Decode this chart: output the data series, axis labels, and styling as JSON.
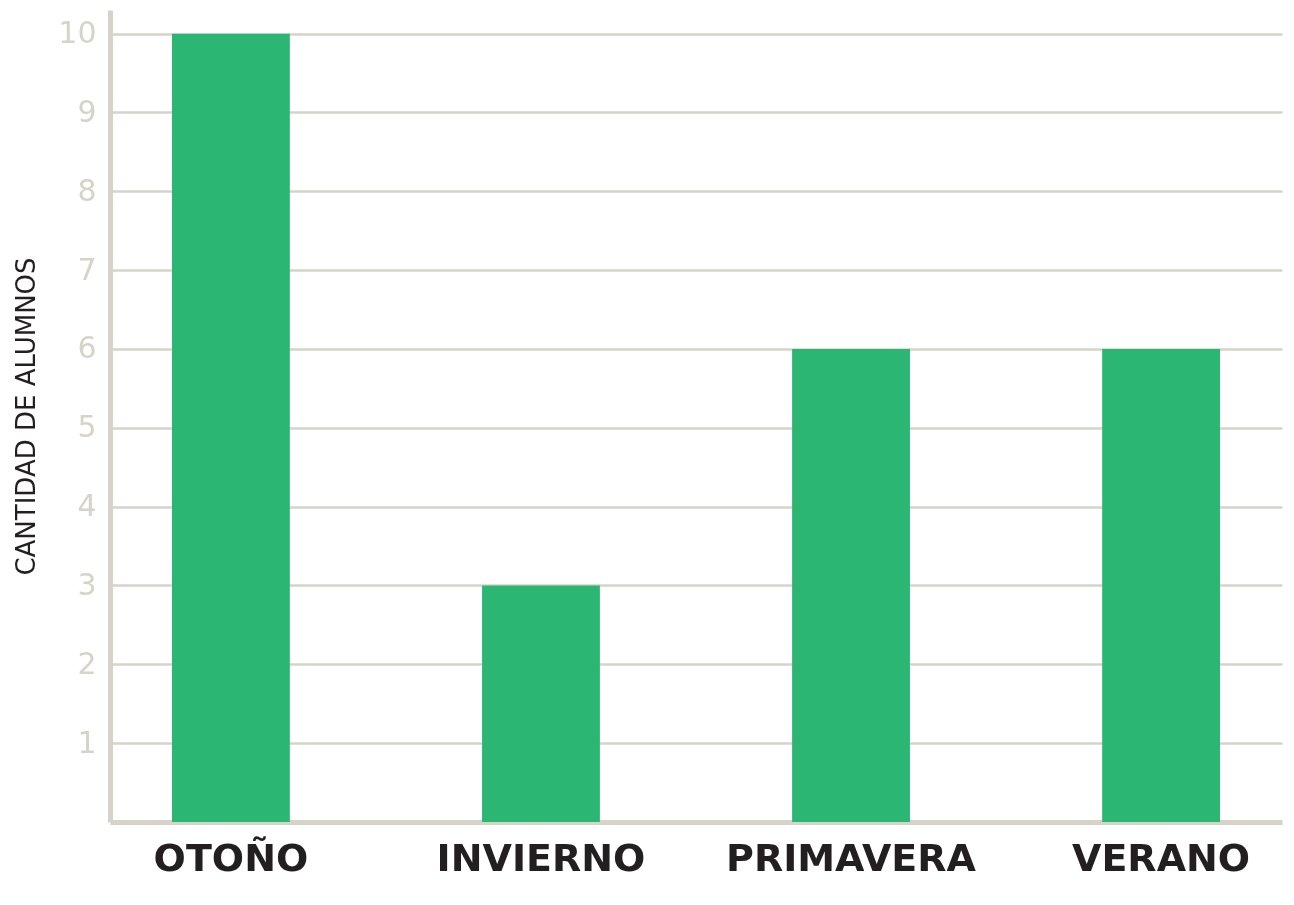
{
  "chart_data": {
    "type": "bar",
    "ylabel": "CANTIDAD DE ALUMNOS",
    "categories": [
      "OTOÑO",
      "INVIERNO",
      "PRIMAVERA",
      "VERANO"
    ],
    "values": [
      10,
      3,
      6,
      6
    ],
    "color": "#2bb673",
    "ylim": [
      0,
      10.3
    ],
    "yticks": [
      1,
      2,
      3,
      4,
      5,
      6,
      7,
      8,
      9,
      10
    ],
    "grid": "y"
  }
}
